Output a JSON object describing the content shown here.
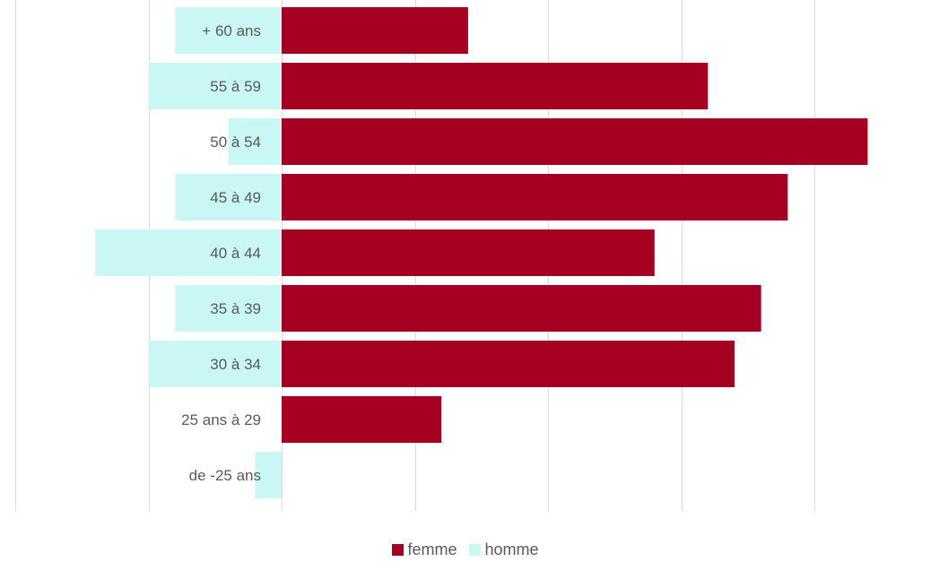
{
  "chart_data": {
    "type": "bar",
    "orientation": "horizontal",
    "categories": [
      "+ 60 ans",
      "55 à 59",
      "50 à 54",
      "45 à 49",
      "40 à 44",
      "35 à 39",
      "30 à 34",
      "25 ans à 29",
      "de -25 ans"
    ],
    "series": [
      {
        "name": "femme",
        "values": [
          7,
          16,
          22,
          19,
          14,
          18,
          17,
          6,
          0
        ],
        "color": "#A50021"
      },
      {
        "name": "homme",
        "values": [
          -4,
          -5,
          -2,
          -4,
          -7,
          -4,
          -5,
          0,
          -1
        ],
        "color": "#C9F7F3"
      }
    ],
    "xlim": [
      -10,
      25
    ],
    "gridlines": [
      -10,
      -5,
      0,
      5,
      10,
      15,
      20
    ],
    "grid": true,
    "legend_position": "bottom",
    "title": "",
    "xlabel": "",
    "ylabel": ""
  },
  "legend": {
    "femme_label": "femme",
    "homme_label": "homme"
  }
}
